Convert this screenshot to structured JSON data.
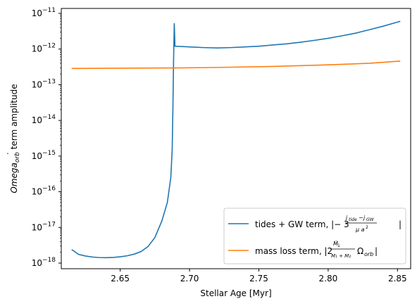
{
  "chart_data": {
    "type": "line",
    "xlabel": "Stellar Age [Myr]",
    "ylabel": "Omega_orb term amplitude",
    "x_ticks": [
      2.65,
      2.7,
      2.75,
      2.8,
      2.85
    ],
    "x_tick_labels": [
      "2.65",
      "2.70",
      "2.75",
      "2.80",
      "2.85"
    ],
    "xlim": [
      2.6075,
      2.8595
    ],
    "y_scale": "log",
    "ylim": [
      1e-18,
      1e-11
    ],
    "y_ticks": [
      1e-18,
      1e-17,
      1e-16,
      1e-15,
      1e-14,
      1e-13,
      1e-12,
      1e-11
    ],
    "y_tick_labels": [
      "10^-18",
      "10^-17",
      "10^-16",
      "10^-15",
      "10^-14",
      "10^-13",
      "10^-12",
      "10^-11"
    ],
    "grid": false,
    "legend_position": "lower-right",
    "series": [
      {
        "name": "tides + GW term, |-3 (j_tide - j_GW)/(μ a²)|",
        "color": "#1f77b4",
        "x": [
          2.615,
          2.62,
          2.625,
          2.63,
          2.635,
          2.64,
          2.645,
          2.65,
          2.655,
          2.66,
          2.665,
          2.67,
          2.675,
          2.68,
          2.684,
          2.6865,
          2.6875,
          2.688,
          2.6885,
          2.689,
          2.6892,
          2.6895,
          2.7,
          2.71,
          2.72,
          2.73,
          2.74,
          2.75,
          2.76,
          2.77,
          2.78,
          2.79,
          2.8,
          2.81,
          2.82,
          2.83,
          2.84,
          2.852
        ],
        "y": [
          2.4e-18,
          1.75e-18,
          1.58e-18,
          1.48e-18,
          1.43e-18,
          1.42e-18,
          1.44e-18,
          1.5e-18,
          1.6e-18,
          1.78e-18,
          2.1e-18,
          2.9e-18,
          5.2e-18,
          1.5e-17,
          5e-17,
          2.5e-16,
          1.5e-15,
          2e-14,
          5e-13,
          5.3e-12,
          3e-12,
          1.2e-12,
          1.15e-12,
          1.1e-12,
          1.07e-12,
          1.1e-12,
          1.15e-12,
          1.2e-12,
          1.3e-12,
          1.4e-12,
          1.55e-12,
          1.75e-12,
          2e-12,
          2.35e-12,
          2.8e-12,
          3.5e-12,
          4.4e-12,
          6e-12
        ]
      },
      {
        "name": "mass loss term, |2 Ṁ₁/(M₁+M₂) Ω_orb|",
        "color": "#ff7f0e",
        "x": [
          2.615,
          2.65,
          2.689,
          2.72,
          2.76,
          2.8,
          2.83,
          2.852
        ],
        "y": [
          2.85e-13,
          2.9e-13,
          2.95e-13,
          3.05e-13,
          3.25e-13,
          3.6e-13,
          4e-13,
          4.6e-13
        ]
      }
    ]
  }
}
